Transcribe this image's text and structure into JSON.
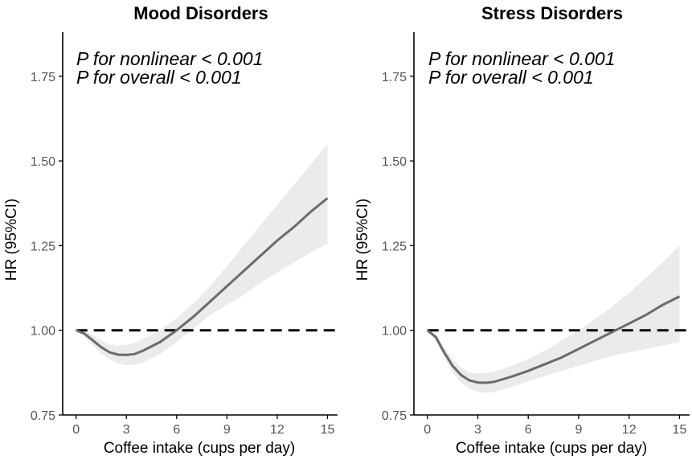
{
  "chart_data": [
    {
      "type": "line",
      "title": "Mood Disorders",
      "xlabel": "Coffee intake (cups per day)",
      "ylabel": "HR (95%CI)",
      "xlim": [
        -0.8,
        15.6
      ],
      "ylim": [
        0.75,
        1.88
      ],
      "xticks": [
        0,
        3,
        6,
        9,
        12,
        15
      ],
      "yticks": [
        0.75,
        1.0,
        1.25,
        1.5,
        1.75
      ],
      "ytick_labels": [
        "0.75",
        "1.00",
        "1.25",
        "1.50",
        "1.75"
      ],
      "reference_line": 1.0,
      "annotations": [
        "P for nonlinear < 0.001",
        "P for overall < 0.001"
      ],
      "series": [
        {
          "name": "HR",
          "x": [
            0,
            0.5,
            1,
            1.5,
            2,
            2.5,
            3,
            3.5,
            4,
            5,
            6,
            7,
            8,
            9,
            10,
            11,
            12,
            13,
            14,
            15
          ],
          "y": [
            1.0,
            0.99,
            0.97,
            0.95,
            0.935,
            0.928,
            0.927,
            0.93,
            0.94,
            0.965,
            1.0,
            1.04,
            1.085,
            1.13,
            1.175,
            1.22,
            1.265,
            1.305,
            1.35,
            1.39
          ],
          "lower": [
            1.0,
            0.98,
            0.955,
            0.93,
            0.913,
            0.902,
            0.897,
            0.898,
            0.905,
            0.93,
            0.965,
            1.005,
            1.045,
            1.075,
            1.105,
            1.14,
            1.17,
            1.2,
            1.23,
            1.255
          ],
          "upper": [
            1.0,
            1.0,
            0.985,
            0.97,
            0.957,
            0.955,
            0.957,
            0.962,
            0.975,
            1.0,
            1.035,
            1.08,
            1.13,
            1.19,
            1.25,
            1.31,
            1.37,
            1.43,
            1.49,
            1.55
          ]
        }
      ]
    },
    {
      "type": "line",
      "title": "Stress Disorders",
      "xlabel": "Coffee intake (cups per day)",
      "ylabel": "HR (95%CI)",
      "xlim": [
        -0.8,
        15.6
      ],
      "ylim": [
        0.75,
        1.88
      ],
      "xticks": [
        0,
        3,
        6,
        9,
        12,
        15
      ],
      "yticks": [
        0.75,
        1.0,
        1.25,
        1.5,
        1.75
      ],
      "ytick_labels": [
        "0.75",
        "1.00",
        "1.25",
        "1.50",
        "1.75"
      ],
      "reference_line": 1.0,
      "annotations": [
        "P for nonlinear < 0.001",
        "P for overall < 0.001"
      ],
      "series": [
        {
          "name": "HR",
          "x": [
            0,
            0.5,
            1,
            1.5,
            2,
            2.5,
            3,
            3.5,
            4,
            5,
            6,
            7,
            8,
            9,
            10,
            11,
            12,
            13,
            14,
            15
          ],
          "y": [
            1.0,
            0.98,
            0.935,
            0.895,
            0.868,
            0.852,
            0.846,
            0.845,
            0.848,
            0.863,
            0.88,
            0.9,
            0.92,
            0.945,
            0.97,
            0.995,
            1.02,
            1.045,
            1.075,
            1.1
          ],
          "lower": [
            1.0,
            0.97,
            0.92,
            0.875,
            0.845,
            0.828,
            0.818,
            0.815,
            0.818,
            0.832,
            0.85,
            0.865,
            0.88,
            0.895,
            0.91,
            0.925,
            0.935,
            0.945,
            0.955,
            0.965
          ],
          "upper": [
            1.0,
            0.99,
            0.95,
            0.915,
            0.89,
            0.876,
            0.872,
            0.874,
            0.878,
            0.895,
            0.915,
            0.94,
            0.97,
            1.0,
            1.035,
            1.07,
            1.11,
            1.155,
            1.2,
            1.25
          ]
        }
      ]
    }
  ]
}
